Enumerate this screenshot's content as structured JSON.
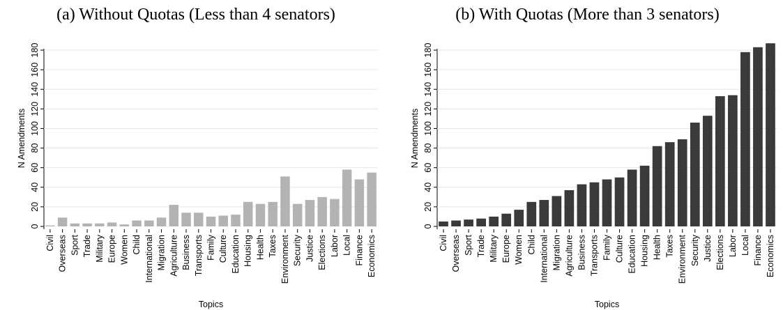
{
  "chart_data": [
    {
      "type": "bar",
      "title": "(a) Without Quotas (Less than 4 senators)",
      "xlabel": "Topics",
      "ylabel": "N Amendments",
      "ylim": [
        0,
        180
      ],
      "yticks": [
        0,
        20,
        40,
        60,
        80,
        100,
        120,
        140,
        160,
        180
      ],
      "grid": true,
      "bar_color": "#b3b3b3",
      "categories": [
        "Civil",
        "Overseas",
        "Sport",
        "Trade",
        "Military",
        "Europe",
        "Women",
        "Child",
        "International",
        "Migration",
        "Agriculture",
        "Business",
        "Transports",
        "Family",
        "Culture",
        "Education",
        "Housing",
        "Health",
        "Taxes",
        "Environment",
        "Security",
        "Justice",
        "Elections",
        "Labor",
        "Local",
        "Finance",
        "Economics"
      ],
      "values": [
        1,
        9,
        3,
        3,
        3,
        4,
        2,
        6,
        6,
        9,
        22,
        14,
        14,
        10,
        11,
        12,
        25,
        23,
        25,
        51,
        23,
        27,
        30,
        28,
        58,
        48,
        55
      ]
    },
    {
      "type": "bar",
      "title": "(b) With Quotas (More than 3 senators)",
      "xlabel": "Topics",
      "ylabel": "N Amendments",
      "ylim": [
        0,
        180
      ],
      "yticks": [
        0,
        20,
        40,
        60,
        80,
        100,
        120,
        140,
        160,
        180
      ],
      "grid": true,
      "bar_color": "#3a3a3a",
      "categories": [
        "Civil",
        "Overseas",
        "Sport",
        "Trade",
        "Military",
        "Europe",
        "Women",
        "Child",
        "International",
        "Migration",
        "Agriculture",
        "Business",
        "Transports",
        "Family",
        "Culture",
        "Education",
        "Housing",
        "Health",
        "Taxes",
        "Environment",
        "Security",
        "Justice",
        "Elections",
        "Labor",
        "Local",
        "Finance",
        "Economics"
      ],
      "values": [
        5,
        6,
        7,
        8,
        10,
        13,
        17,
        25,
        27,
        31,
        37,
        43,
        45,
        48,
        50,
        58,
        62,
        82,
        86,
        89,
        106,
        113,
        133,
        134,
        178,
        183,
        187
      ]
    }
  ]
}
